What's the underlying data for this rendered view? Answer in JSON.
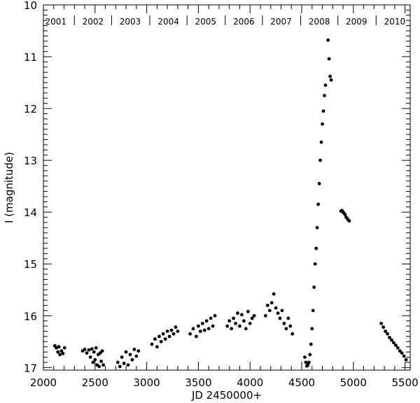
{
  "chart_data": {
    "type": "scatter",
    "xlabel": "JD 2450000+",
    "ylabel": "I (magnitude)",
    "xlim": [
      2000,
      5550
    ],
    "ylim": [
      17.05,
      10
    ],
    "y_inverted": true,
    "grid": false,
    "legend": "none",
    "marker_color": "#000000",
    "x_ticks": [
      2000,
      2500,
      3000,
      3500,
      4000,
      4500,
      5000,
      5500
    ],
    "y_ticks": [
      10,
      11,
      12,
      13,
      14,
      15,
      16,
      17
    ],
    "year_labels": [
      {
        "label": "2001",
        "x": 2120
      },
      {
        "label": "2002",
        "x": 2480
      },
      {
        "label": "2003",
        "x": 2840
      },
      {
        "label": "2004",
        "x": 3210
      },
      {
        "label": "2005",
        "x": 3570
      },
      {
        "label": "2006",
        "x": 3940
      },
      {
        "label": "2007",
        "x": 4300
      },
      {
        "label": "2008",
        "x": 4670
      },
      {
        "label": "2009",
        "x": 5030
      },
      {
        "label": "2010",
        "x": 5400
      }
    ],
    "year_separators": [
      2300,
      2660,
      3030,
      3390,
      3760,
      4120,
      4490,
      4850,
      5220
    ],
    "series": [
      {
        "points": [
          [
            2110,
            16.58
          ],
          [
            2125,
            16.62
          ],
          [
            2140,
            16.7
          ],
          [
            2150,
            16.6
          ],
          [
            2160,
            16.75
          ],
          [
            2175,
            16.68
          ],
          [
            2190,
            16.73
          ],
          [
            2205,
            16.62
          ],
          [
            2380,
            16.68
          ],
          [
            2400,
            16.65
          ],
          [
            2420,
            16.72
          ],
          [
            2440,
            16.66
          ],
          [
            2455,
            16.8
          ],
          [
            2470,
            16.64
          ],
          [
            2480,
            16.9
          ],
          [
            2490,
            16.7
          ],
          [
            2500,
            16.85
          ],
          [
            2510,
            16.62
          ],
          [
            2520,
            16.95
          ],
          [
            2530,
            16.75
          ],
          [
            2540,
            16.98
          ],
          [
            2550,
            16.72
          ],
          [
            2560,
            16.88
          ],
          [
            2570,
            16.68
          ],
          [
            2580,
            16.95
          ],
          [
            2720,
            16.9
          ],
          [
            2740,
            16.98
          ],
          [
            2760,
            16.8
          ],
          [
            2780,
            16.92
          ],
          [
            2800,
            16.7
          ],
          [
            2820,
            16.95
          ],
          [
            2840,
            16.75
          ],
          [
            2860,
            16.85
          ],
          [
            2880,
            16.65
          ],
          [
            2900,
            16.78
          ],
          [
            2920,
            16.68
          ],
          [
            3050,
            16.55
          ],
          [
            3080,
            16.45
          ],
          [
            3100,
            16.6
          ],
          [
            3120,
            16.4
          ],
          [
            3140,
            16.5
          ],
          [
            3160,
            16.35
          ],
          [
            3180,
            16.45
          ],
          [
            3200,
            16.3
          ],
          [
            3220,
            16.4
          ],
          [
            3240,
            16.28
          ],
          [
            3260,
            16.35
          ],
          [
            3280,
            16.22
          ],
          [
            3300,
            16.3
          ],
          [
            3420,
            16.35
          ],
          [
            3450,
            16.25
          ],
          [
            3480,
            16.4
          ],
          [
            3500,
            16.2
          ],
          [
            3520,
            16.3
          ],
          [
            3540,
            16.15
          ],
          [
            3560,
            16.28
          ],
          [
            3580,
            16.1
          ],
          [
            3600,
            16.25
          ],
          [
            3620,
            16.05
          ],
          [
            3640,
            16.2
          ],
          [
            3660,
            16.0
          ],
          [
            3780,
            16.2
          ],
          [
            3800,
            16.1
          ],
          [
            3820,
            16.25
          ],
          [
            3840,
            16.05
          ],
          [
            3860,
            16.15
          ],
          [
            3880,
            15.95
          ],
          [
            3900,
            16.2
          ],
          [
            3920,
            15.98
          ],
          [
            3940,
            16.1
          ],
          [
            3960,
            16.25
          ],
          [
            3980,
            15.92
          ],
          [
            4000,
            16.15
          ],
          [
            4020,
            16.05
          ],
          [
            4040,
            16.0
          ],
          [
            4150,
            16.0
          ],
          [
            4170,
            15.8
          ],
          [
            4190,
            15.9
          ],
          [
            4210,
            15.75
          ],
          [
            4230,
            15.58
          ],
          [
            4250,
            15.85
          ],
          [
            4270,
            15.95
          ],
          [
            4290,
            16.05
          ],
          [
            4310,
            15.9
          ],
          [
            4330,
            16.15
          ],
          [
            4350,
            16.25
          ],
          [
            4370,
            16.05
          ],
          [
            4390,
            16.2
          ],
          [
            4410,
            16.35
          ],
          [
            4530,
            16.8
          ],
          [
            4540,
            16.9
          ],
          [
            4550,
            16.97
          ],
          [
            4560,
            16.95
          ],
          [
            4570,
            16.9
          ],
          [
            4580,
            16.75
          ],
          [
            4590,
            16.55
          ],
          [
            4600,
            16.25
          ],
          [
            4610,
            15.9
          ],
          [
            4620,
            15.45
          ],
          [
            4630,
            15.0
          ],
          [
            4640,
            14.7
          ],
          [
            4650,
            14.3
          ],
          [
            4660,
            13.85
          ],
          [
            4670,
            13.45
          ],
          [
            4680,
            13.0
          ],
          [
            4690,
            12.65
          ],
          [
            4700,
            12.3
          ],
          [
            4710,
            12.05
          ],
          [
            4720,
            11.75
          ],
          [
            4730,
            11.55
          ],
          [
            4755,
            10.68
          ],
          [
            4765,
            11.04
          ],
          [
            4775,
            11.38
          ],
          [
            4785,
            11.45
          ],
          [
            4880,
            13.98
          ],
          [
            4890,
            13.97
          ],
          [
            4900,
            14.0
          ],
          [
            4910,
            14.02
          ],
          [
            4920,
            14.05
          ],
          [
            4930,
            14.1
          ],
          [
            4940,
            14.12
          ],
          [
            4950,
            14.15
          ],
          [
            4960,
            14.17
          ],
          [
            5270,
            16.15
          ],
          [
            5290,
            16.22
          ],
          [
            5310,
            16.3
          ],
          [
            5330,
            16.35
          ],
          [
            5350,
            16.42
          ],
          [
            5370,
            16.47
          ],
          [
            5390,
            16.52
          ],
          [
            5410,
            16.57
          ],
          [
            5430,
            16.62
          ],
          [
            5450,
            16.68
          ],
          [
            5470,
            16.72
          ],
          [
            5490,
            16.78
          ],
          [
            5510,
            16.85
          ]
        ]
      }
    ]
  }
}
